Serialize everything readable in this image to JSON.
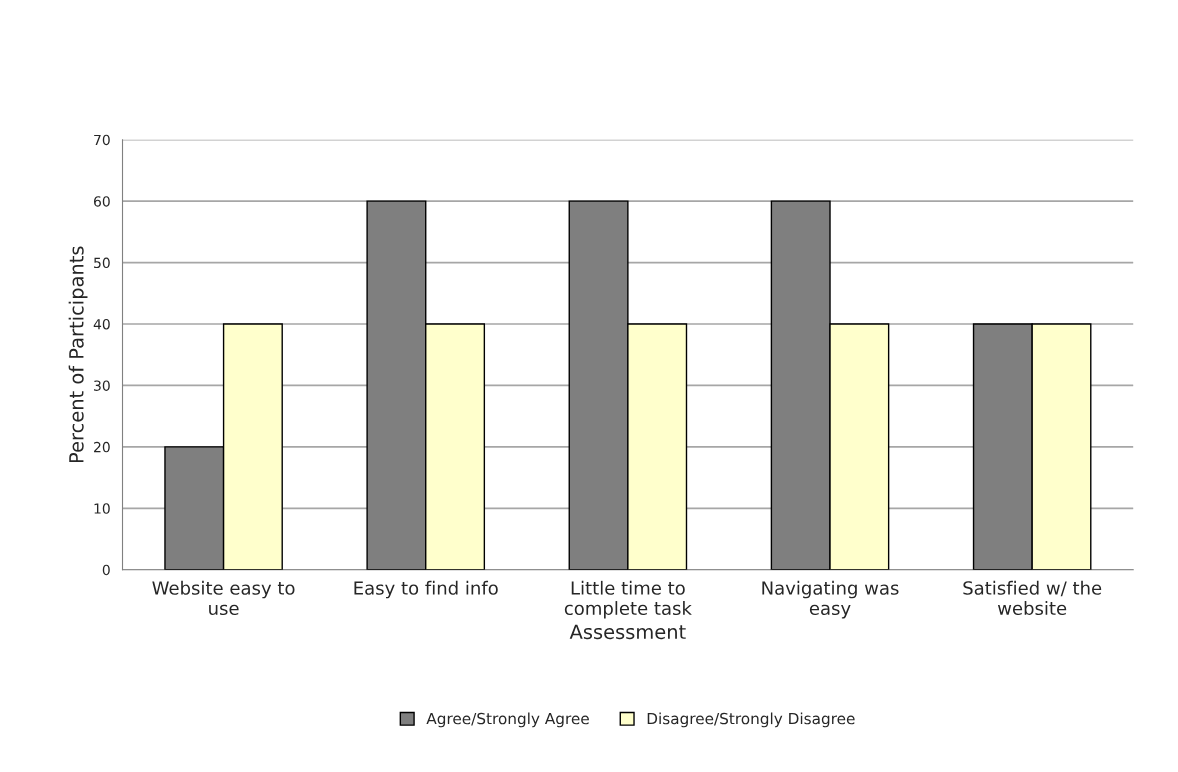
{
  "chart_data": {
    "type": "bar",
    "xlabel": "Assessment",
    "ylabel": "Percent of Participants",
    "categories": [
      "Website easy to use",
      "Easy to find info",
      "Little time to complete task",
      "Navigating was easy",
      "Satisfied w/ the website"
    ],
    "series": [
      {
        "name": "Agree/Strongly Agree",
        "color": "#7f7f7f",
        "values": [
          20,
          60,
          60,
          60,
          40
        ]
      },
      {
        "name": "Disagree/Strongly Disagree",
        "color": "#ffffcc",
        "values": [
          40,
          40,
          40,
          40,
          40
        ]
      }
    ],
    "ylim": [
      0,
      70
    ],
    "yticks": [
      0,
      10,
      20,
      30,
      40,
      50,
      60,
      70
    ],
    "grid": "y",
    "legend": "bottom"
  }
}
